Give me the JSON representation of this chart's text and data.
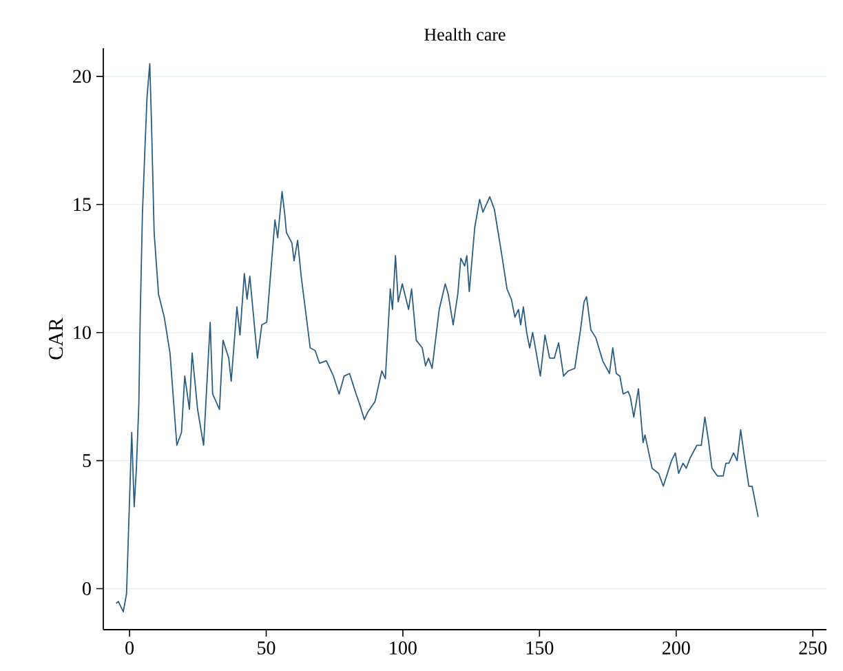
{
  "chart_data": {
    "type": "line",
    "title": "Health care",
    "ylabel": "CAR",
    "grid": "y",
    "color": "#2a5d82",
    "xlim": [
      -9.6,
      255
    ],
    "ylim": [
      -1.6,
      21.1
    ],
    "xticks": [
      0,
      50,
      100,
      150,
      200,
      250
    ],
    "yticks": [
      0,
      5,
      10,
      15,
      20
    ],
    "x": [
      -4.9,
      -4.1,
      -2.3,
      -1.1,
      -0.3,
      0.8,
      1.7,
      2.5,
      3.4,
      3.9,
      4.7,
      5.6,
      6.4,
      7.4,
      8.0,
      9.0,
      10.6,
      12.7,
      14.8,
      17.3,
      19.0,
      20.2,
      21.9,
      22.9,
      24.9,
      27.1,
      29.5,
      30.4,
      32.9,
      34.2,
      36.3,
      37.2,
      39.3,
      40.4,
      42.0,
      43.0,
      44.0,
      46.8,
      48.4,
      50.2,
      53.2,
      54.2,
      55.8,
      56.8,
      57.4,
      59.4,
      60.2,
      61.5,
      62.8,
      66.1,
      67.9,
      69.5,
      72.0,
      74.6,
      76.7,
      78.5,
      80.5,
      82.9,
      84.2,
      85.9,
      87.2,
      89.8,
      92.3,
      93.6,
      95.4,
      96.2,
      97.3,
      98.3,
      99.8,
      102.1,
      103.2,
      104.9,
      107.1,
      108.3,
      109.4,
      110.7,
      113.3,
      115.5,
      116.6,
      118.4,
      120.1,
      121.2,
      122.6,
      123.4,
      124.3,
      126.3,
      128.1,
      129.3,
      131.8,
      133.5,
      136.1,
      138.1,
      139.7,
      141.0,
      142.3,
      143.1,
      144.1,
      145.3,
      146.4,
      147.5,
      150.3,
      152.0,
      153.7,
      155.4,
      157.0,
      158.8,
      160.5,
      162.9,
      165.0,
      166.3,
      167.2,
      168.8,
      170.6,
      173.1,
      175.6,
      176.8,
      178.1,
      179.4,
      180.6,
      182.4,
      183.2,
      184.5,
      186.2,
      187.9,
      188.6,
      191.2,
      193.6,
      195.3,
      198.3,
      199.7,
      200.9,
      202.5,
      203.7,
      205.1,
      207.6,
      209.2,
      210.5,
      211.8,
      213.1,
      215.1,
      217.2,
      218.2,
      219.3,
      221.0,
      222.3,
      223.6,
      224.9,
      226.6,
      227.8,
      230.0
    ],
    "values": [
      -0.57,
      -0.5,
      -0.9,
      -0.2,
      2.5,
      6.1,
      3.2,
      4.7,
      7.2,
      10.6,
      14.6,
      17.1,
      19.2,
      20.5,
      18.3,
      13.9,
      11.5,
      10.6,
      9.2,
      5.6,
      6.1,
      8.3,
      7.0,
      9.2,
      7.0,
      5.6,
      10.4,
      7.6,
      7.0,
      9.7,
      9.0,
      8.1,
      11.0,
      9.9,
      12.3,
      11.3,
      12.2,
      9.0,
      10.3,
      10.4,
      14.4,
      13.7,
      15.5,
      14.6,
      13.9,
      13.5,
      12.8,
      13.6,
      12.2,
      9.4,
      9.3,
      8.8,
      8.9,
      8.3,
      7.6,
      8.3,
      8.4,
      7.6,
      7.2,
      6.6,
      6.9,
      7.3,
      8.5,
      8.2,
      11.7,
      10.9,
      13.0,
      11.2,
      11.9,
      10.9,
      11.7,
      9.7,
      9.4,
      8.7,
      9.0,
      8.6,
      10.9,
      11.9,
      11.5,
      10.3,
      11.5,
      12.9,
      12.6,
      13.0,
      11.6,
      14.1,
      15.2,
      14.7,
      15.3,
      14.8,
      13.1,
      11.7,
      11.3,
      10.6,
      10.9,
      10.3,
      11.0,
      10.0,
      9.4,
      10.0,
      8.3,
      9.9,
      9.0,
      9.0,
      9.6,
      8.3,
      8.5,
      8.6,
      10.1,
      11.2,
      11.4,
      10.1,
      9.8,
      8.9,
      8.4,
      9.4,
      8.4,
      8.3,
      7.6,
      7.7,
      7.5,
      6.7,
      7.8,
      5.7,
      6.0,
      4.7,
      4.5,
      4.0,
      5.0,
      5.3,
      4.5,
      4.9,
      4.7,
      5.1,
      5.6,
      5.6,
      6.7,
      5.8,
      4.7,
      4.4,
      4.4,
      4.9,
      4.9,
      5.3,
      5.0,
      6.2,
      5.2,
      4.0,
      4.0,
      2.8
    ]
  }
}
